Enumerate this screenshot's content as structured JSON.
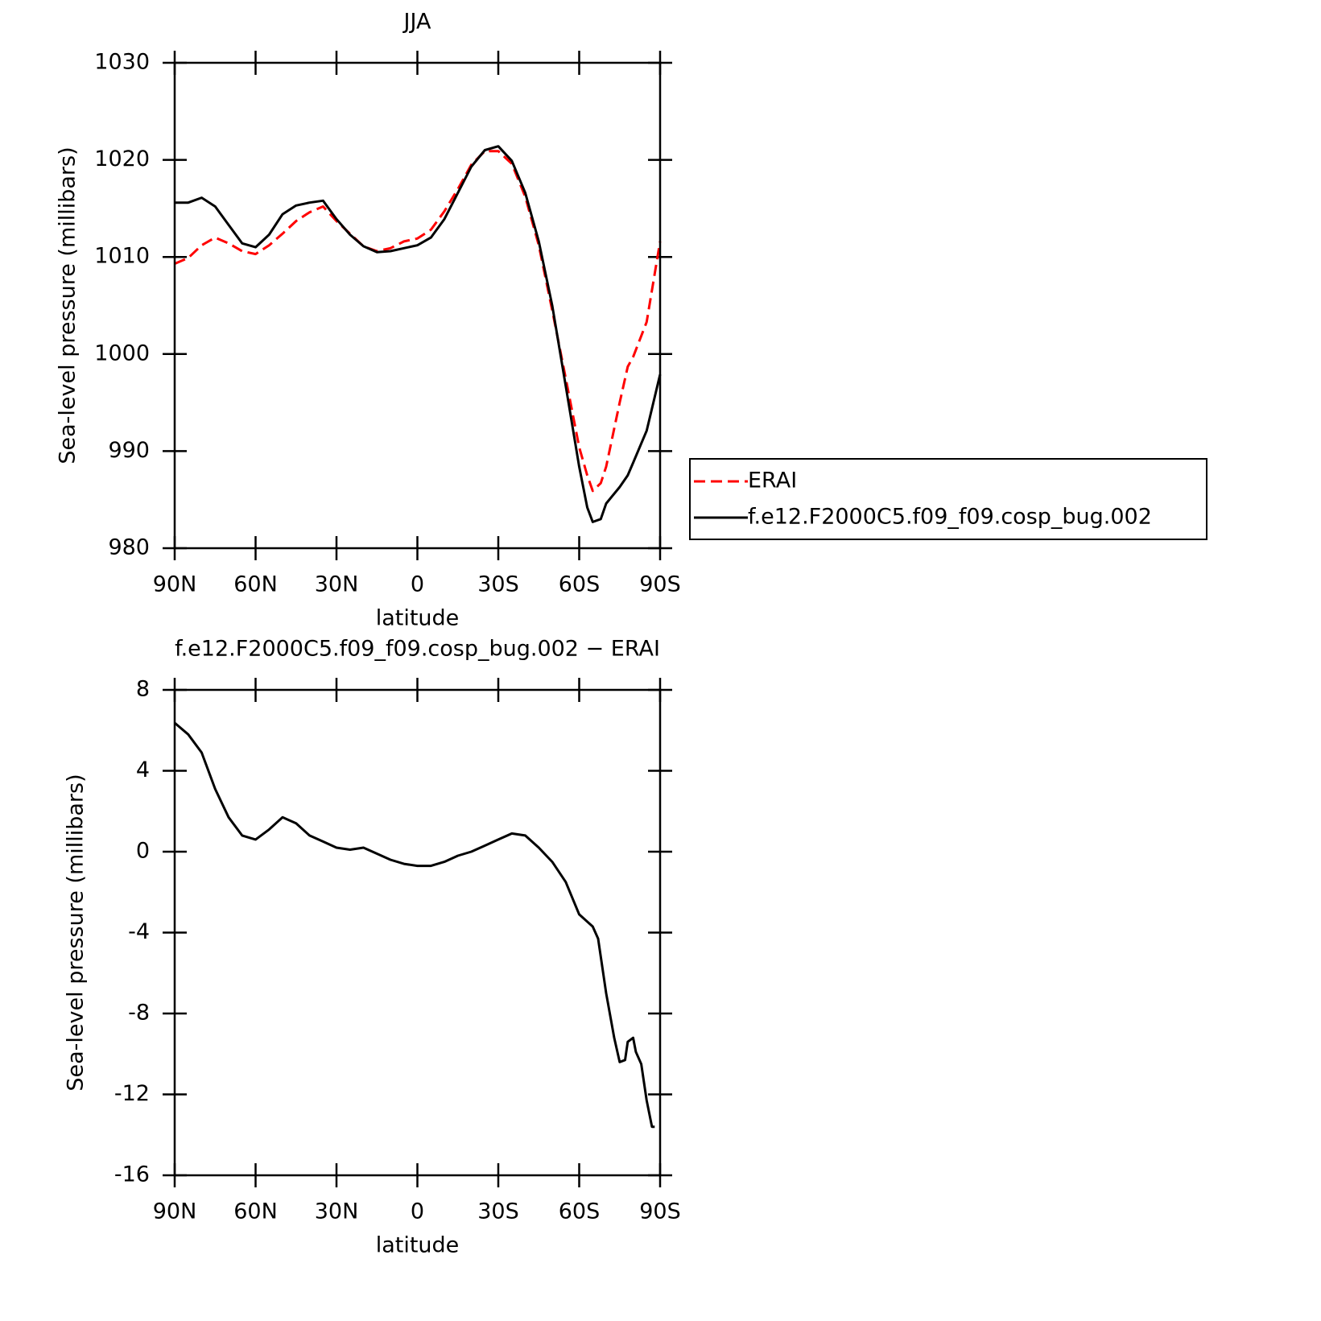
{
  "chart_data": [
    {
      "type": "line",
      "title": "JJA",
      "xlabel": "latitude",
      "ylabel": "Sea-level pressure (millibars)",
      "x": [
        90,
        85,
        80,
        75,
        70,
        65,
        60,
        55,
        50,
        45,
        40,
        35,
        30,
        25,
        20,
        15,
        10,
        5,
        0,
        -5,
        -10,
        -15,
        -20,
        -25,
        -30,
        -35,
        -40,
        -45,
        -50,
        -55,
        -60,
        -63,
        -65,
        -68,
        -70,
        -75,
        -78,
        -80,
        -85,
        -90
      ],
      "series": [
        {
          "name": "ERAI",
          "color": "#ff0000",
          "dash": true,
          "values": [
            1009.3,
            1009.9,
            1011.2,
            1012.0,
            1011.4,
            1010.6,
            1010.3,
            1011.2,
            1012.4,
            1013.7,
            1014.6,
            1015.2,
            1013.7,
            1012.4,
            1011.1,
            1010.6,
            1010.9,
            1011.6,
            1011.9,
            1012.8,
            1014.7,
            1017.0,
            1019.5,
            1020.9,
            1020.9,
            1019.6,
            1016.2,
            1011.2,
            1004.5,
            997.5,
            990.4,
            987.5,
            985.9,
            986.7,
            988.4,
            995.0,
            998.7,
            999.7,
            1003.3,
            1011.6
          ]
        },
        {
          "name": "f.e12.F2000C5.f09_f09.cosp_bug.002",
          "color": "#000000",
          "dash": false,
          "values": [
            1015.6,
            1015.6,
            1016.1,
            1015.2,
            1013.3,
            1011.4,
            1011.0,
            1012.3,
            1014.4,
            1015.3,
            1015.6,
            1015.8,
            1013.9,
            1012.3,
            1011.1,
            1010.5,
            1010.6,
            1010.9,
            1011.2,
            1012.0,
            1013.9,
            1016.6,
            1019.3,
            1021.0,
            1021.4,
            1019.9,
            1016.6,
            1011.6,
            1005.0,
            996.7,
            988.4,
            984.2,
            982.7,
            983.0,
            984.6,
            986.3,
            987.5,
            988.8,
            992.1,
            997.9
          ]
        }
      ],
      "xlim": [
        90,
        -90
      ],
      "xticks": [
        {
          "value": 90,
          "label": "90N"
        },
        {
          "value": 60,
          "label": "60N"
        },
        {
          "value": 30,
          "label": "30N"
        },
        0,
        {
          "value": -30,
          "label": "30S"
        },
        {
          "value": -60,
          "label": "60S"
        },
        {
          "value": -90,
          "label": "90S"
        }
      ],
      "ylim": [
        980,
        1030
      ],
      "yticks": [
        980,
        990,
        1000,
        1010,
        1020,
        1030
      ],
      "legend": "right"
    },
    {
      "type": "line",
      "title": "f.e12.F2000C5.f09_f09.cosp_bug.002 − ERAI",
      "xlabel": "latitude",
      "ylabel": "Sea-level pressure (millibars)",
      "x": [
        90,
        85,
        80,
        75,
        70,
        65,
        60,
        55,
        50,
        45,
        40,
        35,
        30,
        25,
        20,
        15,
        10,
        5,
        0,
        -5,
        -10,
        -15,
        -20,
        -25,
        -30,
        -35,
        -40,
        -45,
        -50,
        -55,
        -60,
        -65,
        -67,
        -70,
        -73,
        -75,
        -77,
        -78,
        -80,
        -81,
        -83,
        -85,
        -87,
        -88
      ],
      "series": [
        {
          "color": "#000000",
          "dash": false,
          "values": [
            6.37,
            5.8,
            4.9,
            3.1,
            1.7,
            0.8,
            0.6,
            1.1,
            1.7,
            1.4,
            0.8,
            0.5,
            0.2,
            0.1,
            0.2,
            -0.1,
            -0.4,
            -0.6,
            -0.7,
            -0.7,
            -0.5,
            -0.2,
            0.0,
            0.3,
            0.6,
            0.9,
            0.8,
            0.2,
            -0.5,
            -1.5,
            -3.1,
            -3.7,
            -4.3,
            -7.0,
            -9.2,
            -10.4,
            -10.3,
            -9.4,
            -9.2,
            -9.9,
            -10.5,
            -12.3,
            -13.6,
            -13.6
          ]
        }
      ],
      "xlim": [
        90,
        -90
      ],
      "xticks": [
        {
          "value": 90,
          "label": "90N"
        },
        {
          "value": 60,
          "label": "60N"
        },
        {
          "value": 30,
          "label": "30N"
        },
        0,
        {
          "value": -30,
          "label": "30S"
        },
        {
          "value": -60,
          "label": "60S"
        },
        {
          "value": -90,
          "label": "90S"
        }
      ],
      "ylim": [
        -16,
        8
      ],
      "yticks": [
        -16,
        -12,
        -8,
        -4,
        0,
        4,
        8
      ]
    }
  ]
}
